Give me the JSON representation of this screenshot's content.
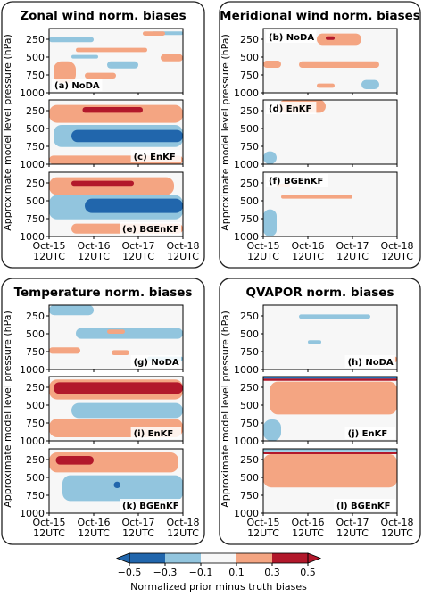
{
  "figure": {
    "ylabel": "Approximate model level pressure (hPa)",
    "x_ticks": [
      [
        "Oct-15",
        "12UTC"
      ],
      [
        "Oct-16",
        "12UTC"
      ],
      [
        "Oct-17",
        "12UTC"
      ],
      [
        "Oct-18",
        "12UTC"
      ]
    ],
    "y_ticks": [
      "250",
      "500",
      "750",
      "1000"
    ],
    "colorbar": {
      "label": "Normalized prior minus truth biases",
      "ticks": [
        "−0.5",
        "−0.3",
        "−0.1",
        "0.1",
        "0.3",
        "0.5"
      ],
      "colors": [
        "#2166ac",
        "#92c5de",
        "#f7f7f7",
        "#f4a582",
        "#b2182b"
      ],
      "extend": "both"
    }
  },
  "chart_data": [
    {
      "type": "heatmap",
      "title": "Zonal wind norm. biases",
      "xlabel": "",
      "ylabel": "Approximate model level pressure (hPa)",
      "ylim": [
        1000,
        100
      ],
      "panels": [
        {
          "label": "(a) NoDA",
          "regions": [
            {
              "value": -0.2,
              "x": [
                0.0,
                1.0
              ],
              "p": [
                220,
                290
              ]
            },
            {
              "value": -0.2,
              "x": [
                2.3,
                3.0
              ],
              "p": [
                140,
                190
              ]
            },
            {
              "value": 0.2,
              "x": [
                0.6,
                2.2
              ],
              "p": [
                370,
                430
              ]
            },
            {
              "value": 0.2,
              "x": [
                2.1,
                2.6
              ],
              "p": [
                140,
                200
              ]
            },
            {
              "value": -0.2,
              "x": [
                0.5,
                1.1
              ],
              "p": [
                470,
                520
              ]
            },
            {
              "value": -0.2,
              "x": [
                1.3,
                2.0
              ],
              "p": [
                560,
                660
              ]
            },
            {
              "value": 0.2,
              "x": [
                2.5,
                3.0
              ],
              "p": [
                460,
                560
              ]
            },
            {
              "value": 0.2,
              "x": [
                0.1,
                0.6
              ],
              "p": [
                560,
                860
              ]
            },
            {
              "value": 0.2,
              "x": [
                0.8,
                1.5
              ],
              "p": [
                720,
                800
              ]
            }
          ]
        },
        {
          "label": "(c) EnKF",
          "regions": [
            {
              "value": 0.2,
              "x": [
                0.0,
                3.0
              ],
              "p": [
                170,
                420
              ]
            },
            {
              "value": 0.4,
              "x": [
                0.75,
                2.1
              ],
              "p": [
                200,
                280
              ]
            },
            {
              "value": 0.55,
              "x": [
                0.9,
                1.4
              ],
              "p": [
                205,
                260
              ]
            },
            {
              "value": -0.2,
              "x": [
                0.1,
                3.0
              ],
              "p": [
                450,
                760
              ]
            },
            {
              "value": -0.4,
              "x": [
                0.5,
                3.0
              ],
              "p": [
                520,
                690
              ]
            },
            {
              "value": 0.2,
              "x": [
                0.0,
                3.0
              ],
              "p": [
                880,
                1000
              ]
            }
          ]
        },
        {
          "label": "(e) BGEnKF",
          "regions": [
            {
              "value": 0.2,
              "x": [
                0.0,
                2.8
              ],
              "p": [
                170,
                420
              ]
            },
            {
              "value": 0.4,
              "x": [
                0.5,
                1.9
              ],
              "p": [
                220,
                290
              ]
            },
            {
              "value": -0.2,
              "x": [
                0.0,
                3.0
              ],
              "p": [
                420,
                760
              ]
            },
            {
              "value": -0.4,
              "x": [
                0.8,
                3.0
              ],
              "p": [
                470,
                670
              ]
            },
            {
              "value": 0.2,
              "x": [
                0.5,
                3.0
              ],
              "p": [
                820,
                960
              ]
            }
          ]
        }
      ]
    },
    {
      "type": "heatmap",
      "title": "Meridional wind norm. biases",
      "xlabel": "",
      "ylabel": "Approximate model level pressure (hPa)",
      "ylim": [
        1000,
        100
      ],
      "panels": [
        {
          "label": "(b) NoDA",
          "regions": [
            {
              "value": 0.2,
              "x": [
                1.2,
                2.2
              ],
              "p": [
                170,
                330
              ]
            },
            {
              "value": 0.4,
              "x": [
                1.4,
                1.6
              ],
              "p": [
                210,
                260
              ]
            },
            {
              "value": 0.2,
              "x": [
                0.0,
                0.4
              ],
              "p": [
                550,
                650
              ]
            },
            {
              "value": 0.2,
              "x": [
                0.8,
                2.6
              ],
              "p": [
                560,
                650
              ]
            },
            {
              "value": -0.2,
              "x": [
                2.2,
                2.6
              ],
              "p": [
                820,
                950
              ]
            },
            {
              "value": 0.2,
              "x": [
                1.2,
                1.6
              ],
              "p": [
                870,
                930
              ]
            }
          ]
        },
        {
          "label": "(d) EnKF",
          "regions": [
            {
              "value": 0.2,
              "x": [
                0.35,
                1.4
              ],
              "p": [
                100,
                280
              ]
            },
            {
              "value": -0.2,
              "x": [
                0.0,
                0.3
              ],
              "p": [
                820,
                1000
              ]
            }
          ]
        },
        {
          "label": "(f) BGEnKF",
          "regions": [
            {
              "value": 0.2,
              "x": [
                0.4,
                2.0
              ],
              "p": [
                420,
                470
              ]
            },
            {
              "value": 0.2,
              "x": [
                0.3,
                0.6
              ],
              "p": [
                260,
                310
              ]
            },
            {
              "value": -0.2,
              "x": [
                0.0,
                0.3
              ],
              "p": [
                620,
                1000
              ]
            }
          ]
        }
      ]
    },
    {
      "type": "heatmap",
      "title": "Temperature norm. biases",
      "xlabel": "",
      "ylabel": "Approximate model level pressure (hPa)",
      "ylim": [
        1000,
        100
      ],
      "panels": [
        {
          "label": "(g) NoDA",
          "regions": [
            {
              "value": -0.2,
              "x": [
                0.0,
                1.0
              ],
              "p": [
                100,
                240
              ]
            },
            {
              "value": -0.2,
              "x": [
                0.6,
                3.0
              ],
              "p": [
                420,
                570
              ]
            },
            {
              "value": 0.2,
              "x": [
                1.3,
                1.7
              ],
              "p": [
                440,
                500
              ]
            },
            {
              "value": 0.2,
              "x": [
                0.0,
                0.7
              ],
              "p": [
                690,
                780
              ]
            },
            {
              "value": 0.2,
              "x": [
                1.4,
                1.8
              ],
              "p": [
                730,
                800
              ]
            },
            {
              "value": -0.2,
              "x": [
                2.2,
                3.0
              ],
              "p": [
                820,
                880
              ]
            }
          ]
        },
        {
          "label": "(i) EnKF",
          "regions": [
            {
              "value": 0.2,
              "x": [
                0.0,
                3.0
              ],
              "p": [
                140,
                420
              ]
            },
            {
              "value": 0.4,
              "x": [
                0.1,
                3.0
              ],
              "p": [
                180,
                340
              ]
            },
            {
              "value": -0.2,
              "x": [
                0.5,
                3.0
              ],
              "p": [
                470,
                680
              ]
            },
            {
              "value": 0.2,
              "x": [
                0.0,
                3.0
              ],
              "p": [
                690,
                950
              ]
            }
          ]
        },
        {
          "label": "(k) BGEnKF",
          "regions": [
            {
              "value": 0.2,
              "x": [
                0.0,
                2.9
              ],
              "p": [
                150,
                430
              ]
            },
            {
              "value": 0.4,
              "x": [
                0.15,
                1.0
              ],
              "p": [
                200,
                320
              ]
            },
            {
              "value": -0.2,
              "x": [
                0.3,
                3.0
              ],
              "p": [
                470,
                830
              ]
            },
            {
              "value": -0.4,
              "x": [
                1.45,
                1.6
              ],
              "p": [
                560,
                650
              ]
            }
          ]
        }
      ]
    },
    {
      "type": "heatmap",
      "title": "QVAPOR norm. biases",
      "xlabel": "",
      "ylabel": "Approximate model level pressure (hPa)",
      "ylim": [
        1000,
        100
      ],
      "panels": [
        {
          "label": "(h) NoDA",
          "regions": [
            {
              "value": -0.2,
              "x": [
                0.8,
                2.4
              ],
              "p": [
                230,
                290
              ]
            },
            {
              "value": -0.2,
              "x": [
                1.0,
                1.3
              ],
              "p": [
                590,
                640
              ]
            },
            {
              "value": 0.2,
              "x": [
                2.9,
                3.0
              ],
              "p": [
                820,
                900
              ]
            }
          ]
        },
        {
          "label": "(j) EnKF",
          "regions": [
            {
              "value": -0.4,
              "x": [
                0.0,
                3.0
              ],
              "p": [
                100,
                130
              ]
            },
            {
              "value": 0.4,
              "x": [
                0.0,
                3.0
              ],
              "p": [
                130,
                160
              ]
            },
            {
              "value": 0.2,
              "x": [
                0.15,
                3.0
              ],
              "p": [
                170,
                630
              ]
            },
            {
              "value": -0.2,
              "x": [
                0.0,
                0.4
              ],
              "p": [
                700,
                1000
              ]
            }
          ]
        },
        {
          "label": "(l) BGEnKF",
          "regions": [
            {
              "value": -0.2,
              "x": [
                0.0,
                3.0
              ],
              "p": [
                100,
                135
              ]
            },
            {
              "value": 0.4,
              "x": [
                0.0,
                3.0
              ],
              "p": [
                140,
                175
              ]
            },
            {
              "value": 0.2,
              "x": [
                0.0,
                3.0
              ],
              "p": [
                175,
                640
              ]
            }
          ]
        }
      ]
    }
  ]
}
